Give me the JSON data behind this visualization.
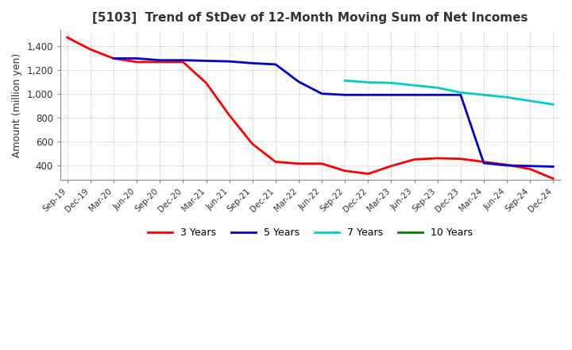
{
  "title": "[5103]  Trend of StDev of 12-Month Moving Sum of Net Incomes",
  "ylabel": "Amount (million yen)",
  "ylim": [
    280,
    1530
  ],
  "yticks": [
    400,
    600,
    800,
    1000,
    1200,
    1400
  ],
  "background_color": "#ffffff",
  "plot_bg_color": "#ffffff",
  "grid_color": "#aaaaaa",
  "x_labels": [
    "Sep-19",
    "Dec-19",
    "Mar-20",
    "Jun-20",
    "Sep-20",
    "Dec-20",
    "Mar-21",
    "Jun-21",
    "Sep-21",
    "Dec-21",
    "Mar-22",
    "Jun-22",
    "Sep-22",
    "Dec-22",
    "Mar-23",
    "Jun-23",
    "Sep-23",
    "Dec-23",
    "Mar-24",
    "Jun-24",
    "Sep-24",
    "Dec-24"
  ],
  "series": {
    "3 Years": {
      "color": "#ff0000",
      "data": [
        1470,
        1370,
        1295,
        1265,
        1265,
        1265,
        1090,
        820,
        580,
        430,
        415,
        415,
        355,
        330,
        395,
        450,
        460,
        455,
        430,
        405,
        370,
        290
      ]
    },
    "5 Years": {
      "color": "#0000cc",
      "data": [
        null,
        null,
        1295,
        1295,
        1280,
        1280,
        1275,
        1270,
        1255,
        1245,
        1100,
        1000,
        990,
        990,
        990,
        990,
        990,
        990,
        420,
        400,
        395,
        390
      ]
    },
    "7 Years": {
      "color": "#00cccc",
      "data": [
        null,
        null,
        null,
        null,
        null,
        null,
        null,
        null,
        null,
        null,
        null,
        null,
        1110,
        1095,
        1090,
        1070,
        1050,
        1010,
        990,
        970,
        940,
        910
      ]
    },
    "10 Years": {
      "color": "#008000",
      "data": [
        null,
        null,
        null,
        null,
        null,
        null,
        null,
        null,
        null,
        null,
        null,
        null,
        null,
        null,
        null,
        null,
        null,
        null,
        null,
        null,
        null,
        null
      ]
    }
  },
  "legend_order": [
    "3 Years",
    "5 Years",
    "7 Years",
    "10 Years"
  ]
}
